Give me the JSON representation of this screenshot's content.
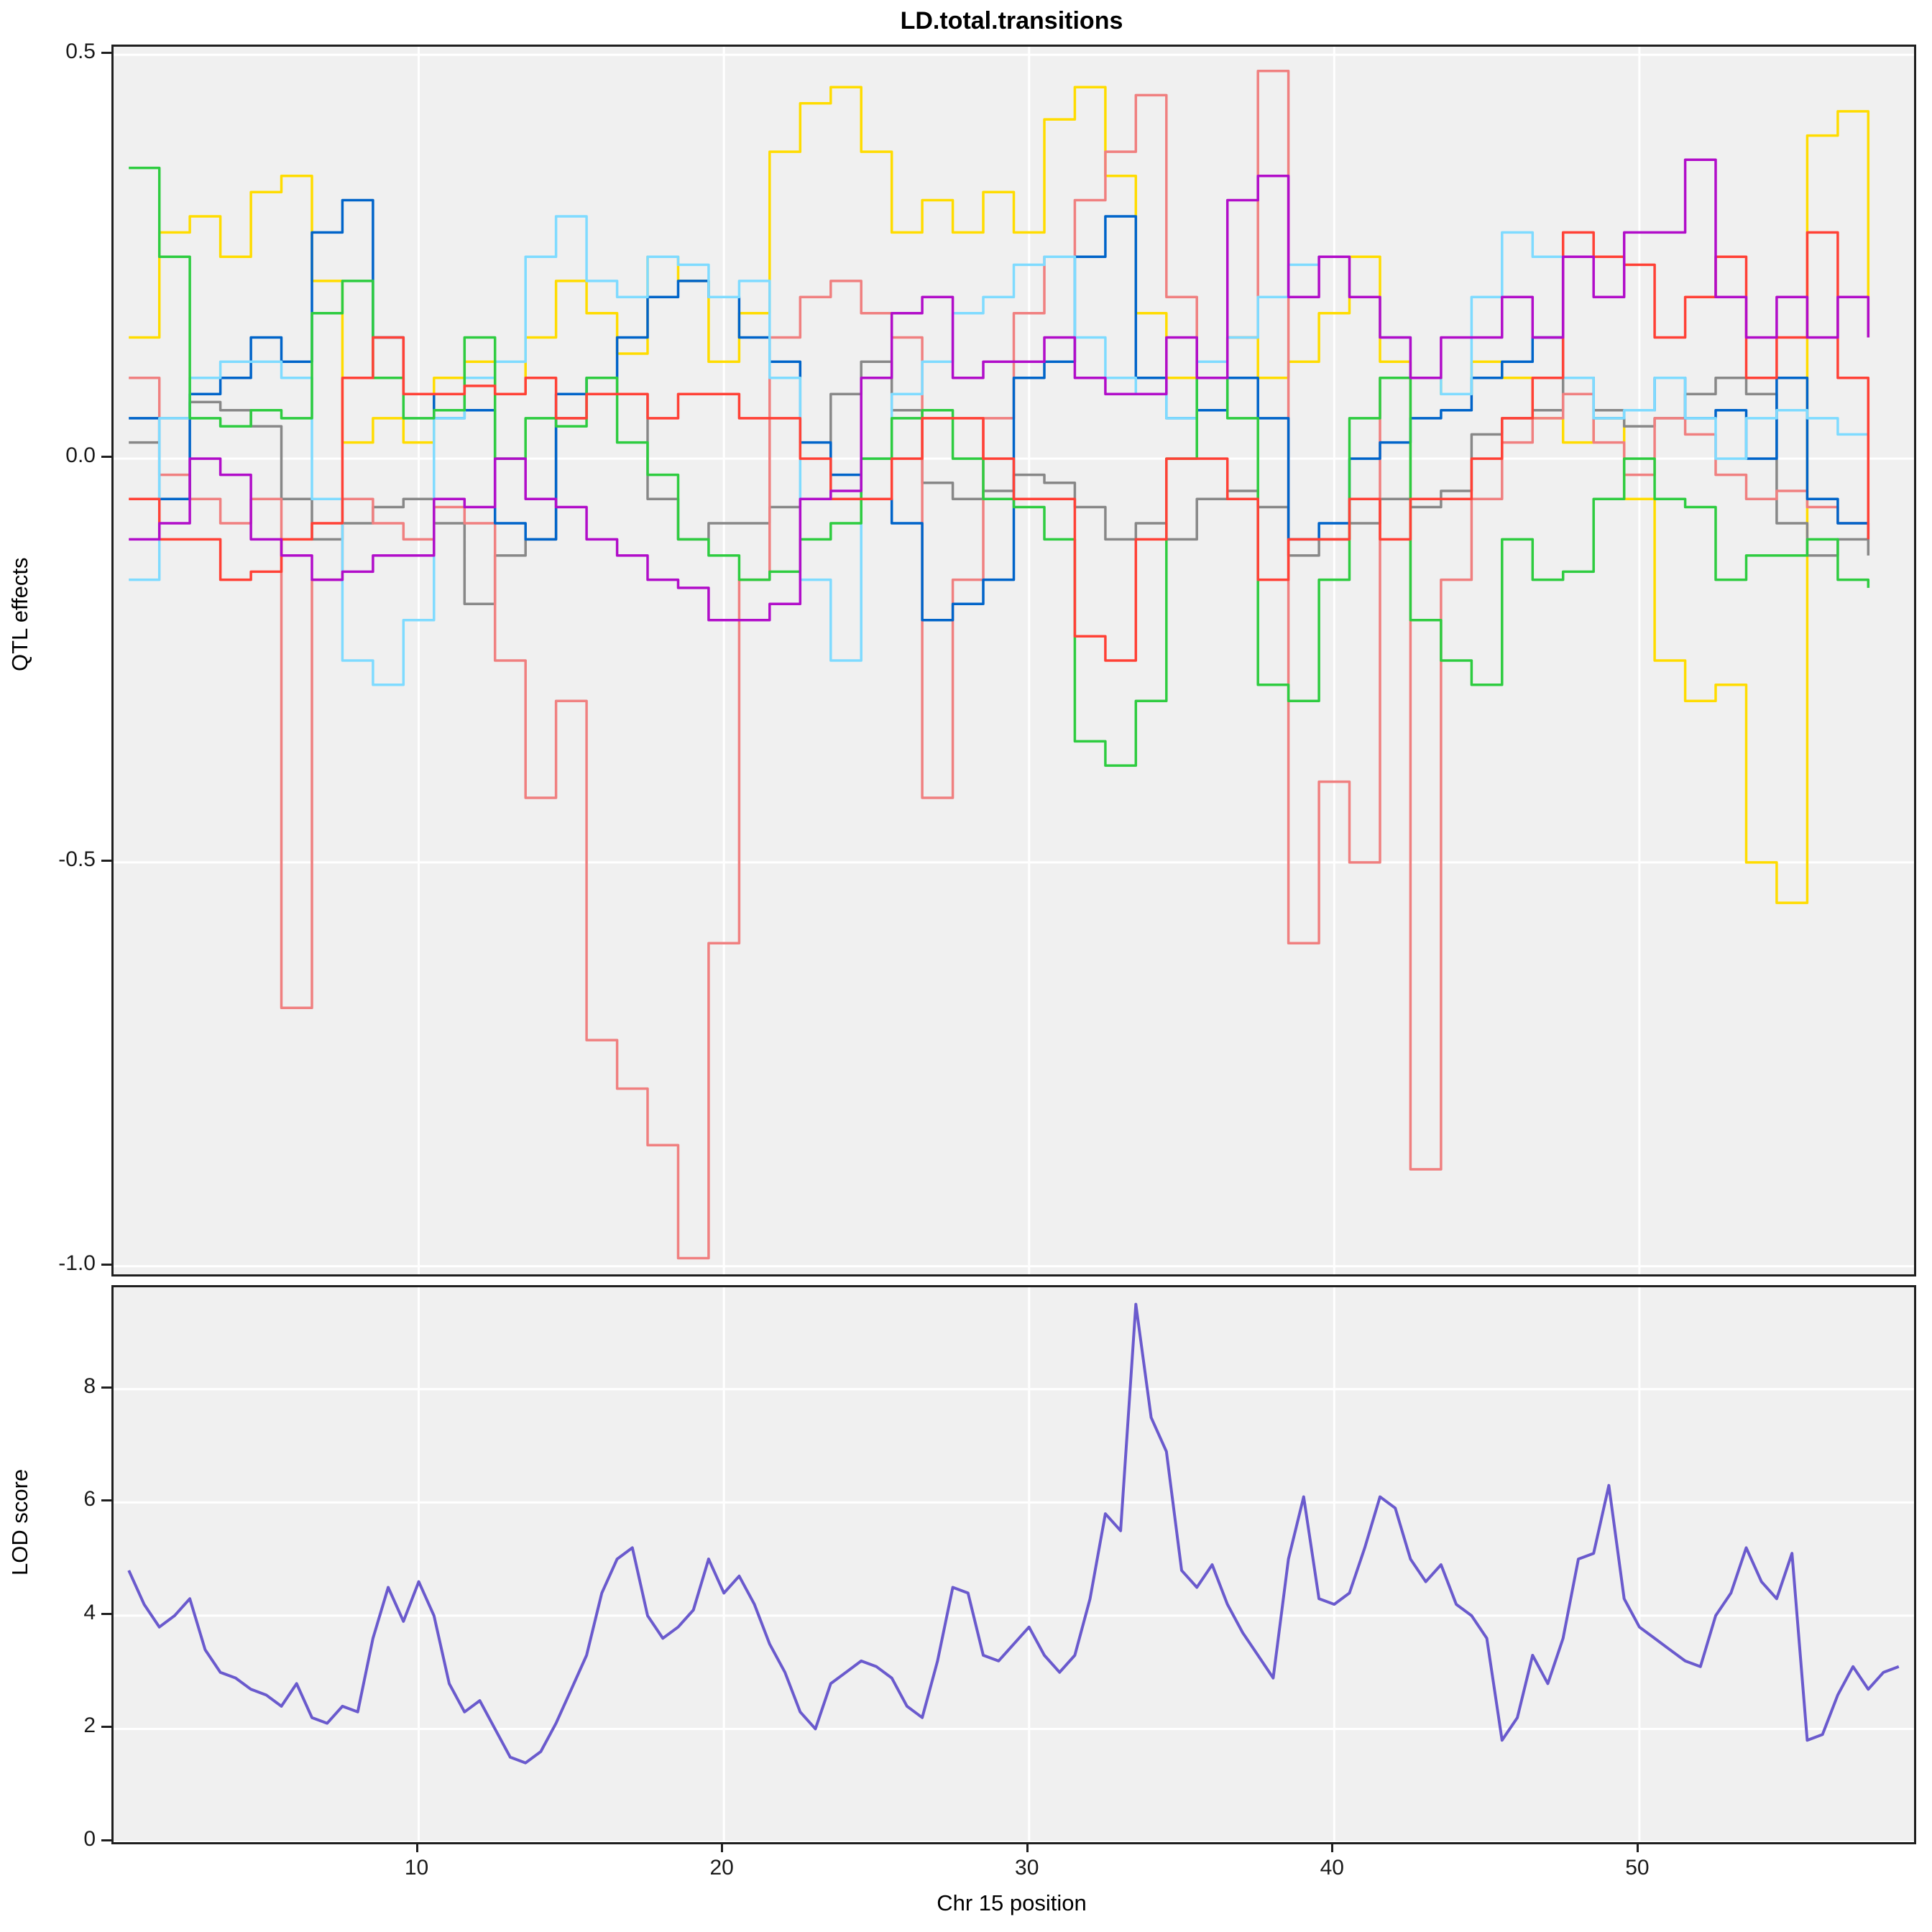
{
  "title": "LD.total.transitions",
  "xlabel": "Chr 15 position",
  "top_panel": {
    "ylabel": "QTL effects"
  },
  "bottom_panel": {
    "ylabel": "LOD score"
  },
  "chart_data": {
    "type": "line",
    "title": "LD.total.transitions",
    "xlabel": "Chr 15 position",
    "xlim": [
      0,
      59
    ],
    "xticks": [
      {
        "label": "10",
        "value": 10
      },
      {
        "label": "20",
        "value": 20
      },
      {
        "label": "30",
        "value": 30
      },
      {
        "label": "40",
        "value": 40
      },
      {
        "label": "50",
        "value": 50
      }
    ],
    "background": "#f0f0f0",
    "grid_color": "#ffffff",
    "grid": "major-only",
    "legend": "none",
    "panels": [
      {
        "name": "qtl-effects",
        "ylabel": "QTL effects",
        "ylim": [
          -1.01,
          0.51
        ],
        "yticks": [
          {
            "label": "0.5",
            "value": 0.5
          },
          {
            "label": "0.0",
            "value": 0.0
          },
          {
            "label": "-0.5",
            "value": -0.5
          },
          {
            "label": "-1.0",
            "value": -1.0
          }
        ],
        "step": true,
        "stroke_width": 3.5,
        "series": [
          {
            "name": "yellow",
            "color": "#FFDC00",
            "x_start": 0.5,
            "x_step": 1.0,
            "values": [
              0.15,
              0.28,
              0.3,
              0.25,
              0.33,
              0.35,
              0.22,
              0.02,
              0.05,
              0.02,
              0.1,
              0.12,
              0.08,
              0.15,
              0.22,
              0.18,
              0.13,
              0.25,
              0.22,
              0.12,
              0.18,
              0.38,
              0.44,
              0.46,
              0.38,
              0.28,
              0.32,
              0.28,
              0.33,
              0.28,
              0.42,
              0.46,
              0.35,
              0.18,
              0.1,
              0.12,
              0.15,
              0.1,
              0.12,
              0.18,
              0.25,
              0.12,
              0.1,
              0.08,
              0.12,
              0.1,
              0.05,
              0.02,
              0.05,
              -0.05,
              -0.25,
              -0.3,
              -0.28,
              -0.5,
              -0.55,
              0.4,
              0.43,
              0.15
            ]
          },
          {
            "name": "gray",
            "color": "#888888",
            "x_start": 0.5,
            "x_step": 1.0,
            "values": [
              0.02,
              0.05,
              0.07,
              0.06,
              0.04,
              -0.05,
              -0.1,
              -0.08,
              -0.06,
              -0.05,
              -0.08,
              -0.18,
              -0.12,
              -0.1,
              0.05,
              0.1,
              0.08,
              -0.05,
              -0.1,
              -0.08,
              -0.08,
              -0.06,
              -0.05,
              0.08,
              0.12,
              0.06,
              -0.03,
              -0.05,
              -0.04,
              -0.02,
              -0.03,
              -0.06,
              -0.1,
              -0.08,
              -0.1,
              -0.05,
              -0.04,
              -0.06,
              -0.12,
              -0.1,
              -0.08,
              -0.05,
              -0.06,
              -0.04,
              0.03,
              0.05,
              0.06,
              0.1,
              0.06,
              0.04,
              0.05,
              0.08,
              0.1,
              0.08,
              -0.08,
              -0.12,
              -0.1,
              -0.12
            ]
          },
          {
            "name": "pink",
            "color": "#F08080",
            "x_start": 0.5,
            "x_step": 1.0,
            "values": [
              0.1,
              -0.02,
              -0.05,
              -0.08,
              -0.05,
              -0.68,
              -0.15,
              -0.05,
              -0.08,
              -0.1,
              -0.06,
              -0.08,
              -0.25,
              -0.42,
              -0.3,
              -0.72,
              -0.78,
              -0.85,
              -0.99,
              -0.6,
              -0.15,
              0.15,
              0.2,
              0.22,
              0.18,
              0.15,
              -0.42,
              -0.15,
              0.05,
              0.18,
              0.25,
              0.32,
              0.38,
              0.45,
              0.2,
              0.12,
              0.15,
              0.48,
              -0.6,
              -0.4,
              -0.5,
              0.1,
              -0.88,
              -0.15,
              -0.05,
              0.02,
              0.05,
              0.08,
              0.02,
              -0.02,
              0.05,
              0.03,
              -0.02,
              -0.05,
              -0.04,
              -0.06,
              -0.08,
              -0.1
            ]
          },
          {
            "name": "blue",
            "color": "#0064C9",
            "x_start": 0.5,
            "x_step": 1.0,
            "values": [
              0.05,
              -0.05,
              0.08,
              0.1,
              0.15,
              0.12,
              0.28,
              0.32,
              0.15,
              0.08,
              0.05,
              0.06,
              -0.08,
              -0.1,
              0.08,
              0.1,
              0.15,
              0.2,
              0.22,
              0.2,
              0.15,
              0.12,
              0.02,
              -0.02,
              -0.05,
              -0.08,
              -0.2,
              -0.18,
              -0.15,
              0.1,
              0.12,
              0.25,
              0.3,
              0.1,
              0.05,
              0.06,
              0.1,
              0.05,
              -0.1,
              -0.08,
              0.0,
              0.02,
              0.05,
              0.06,
              0.1,
              0.12,
              0.15,
              0.1,
              0.05,
              0.06,
              0.1,
              0.05,
              0.06,
              0.0,
              0.1,
              -0.05,
              -0.08,
              -0.1
            ]
          },
          {
            "name": "lightblue",
            "color": "#7FDBFF",
            "x_start": 0.5,
            "x_step": 1.0,
            "values": [
              -0.15,
              0.05,
              0.1,
              0.12,
              0.12,
              0.1,
              -0.05,
              -0.25,
              -0.28,
              -0.2,
              0.05,
              0.1,
              0.12,
              0.25,
              0.3,
              0.22,
              0.2,
              0.25,
              0.24,
              0.2,
              0.22,
              0.1,
              -0.15,
              -0.25,
              0.0,
              0.08,
              0.12,
              0.18,
              0.2,
              0.24,
              0.25,
              0.15,
              0.1,
              0.08,
              0.05,
              0.12,
              0.15,
              0.2,
              0.24,
              0.25,
              0.2,
              0.15,
              0.1,
              0.08,
              0.2,
              0.28,
              0.25,
              0.1,
              0.05,
              0.06,
              0.1,
              0.05,
              0.0,
              0.05,
              0.06,
              0.05,
              0.03,
              0.02
            ]
          },
          {
            "name": "green",
            "color": "#2ECC40",
            "x_start": 0.5,
            "x_step": 1.0,
            "values": [
              0.36,
              0.25,
              0.05,
              0.04,
              0.06,
              0.05,
              0.18,
              0.22,
              0.1,
              0.05,
              0.06,
              0.15,
              0.0,
              0.05,
              0.04,
              0.1,
              0.02,
              -0.02,
              -0.1,
              -0.12,
              -0.15,
              -0.14,
              -0.1,
              -0.08,
              0.0,
              0.05,
              0.06,
              0.0,
              -0.05,
              -0.06,
              -0.1,
              -0.35,
              -0.38,
              -0.3,
              0.0,
              0.1,
              0.05,
              -0.28,
              -0.3,
              -0.15,
              0.05,
              0.1,
              -0.2,
              -0.25,
              -0.28,
              -0.1,
              -0.15,
              -0.14,
              -0.05,
              0.0,
              -0.05,
              -0.06,
              -0.15,
              -0.12,
              -0.12,
              -0.1,
              -0.15,
              -0.16
            ]
          },
          {
            "name": "red",
            "color": "#FF4136",
            "x_start": 0.5,
            "x_step": 1.0,
            "values": [
              -0.05,
              -0.1,
              -0.1,
              -0.15,
              -0.14,
              -0.1,
              -0.08,
              0.1,
              0.15,
              0.08,
              0.08,
              0.09,
              0.08,
              0.1,
              0.05,
              0.08,
              0.08,
              0.05,
              0.08,
              0.08,
              0.05,
              0.05,
              0.0,
              -0.05,
              -0.05,
              0.0,
              0.05,
              0.05,
              0.0,
              -0.05,
              -0.05,
              -0.22,
              -0.25,
              -0.1,
              0.0,
              0.0,
              -0.05,
              -0.15,
              -0.1,
              -0.1,
              -0.05,
              -0.1,
              -0.05,
              -0.05,
              0.0,
              0.05,
              0.1,
              0.28,
              0.25,
              0.24,
              0.15,
              0.2,
              0.25,
              0.1,
              0.15,
              0.28,
              0.1,
              -0.1
            ]
          },
          {
            "name": "purple",
            "color": "#B10DC9",
            "x_start": 0.5,
            "x_step": 1.0,
            "values": [
              -0.1,
              -0.08,
              0.0,
              -0.02,
              -0.1,
              -0.12,
              -0.15,
              -0.14,
              -0.12,
              -0.12,
              -0.05,
              -0.06,
              0.0,
              -0.05,
              -0.06,
              -0.1,
              -0.12,
              -0.15,
              -0.16,
              -0.2,
              -0.2,
              -0.18,
              -0.05,
              -0.04,
              0.1,
              0.18,
              0.2,
              0.1,
              0.12,
              0.12,
              0.15,
              0.1,
              0.08,
              0.08,
              0.15,
              0.1,
              0.32,
              0.35,
              0.2,
              0.25,
              0.2,
              0.15,
              0.1,
              0.15,
              0.15,
              0.2,
              0.15,
              0.25,
              0.2,
              0.28,
              0.28,
              0.37,
              0.2,
              0.15,
              0.2,
              0.15,
              0.2,
              0.15
            ]
          }
        ]
      },
      {
        "name": "lod-score",
        "ylabel": "LOD score",
        "ylim": [
          0,
          9.8
        ],
        "yticks": [
          {
            "label": "0",
            "value": 0
          },
          {
            "label": "2",
            "value": 2
          },
          {
            "label": "4",
            "value": 4
          },
          {
            "label": "6",
            "value": 6
          },
          {
            "label": "8",
            "value": 8
          }
        ],
        "step": false,
        "stroke_width": 4,
        "series": [
          {
            "name": "lod",
            "color": "#6A5ACD",
            "x_start": 0.5,
            "x_step": 0.5,
            "values": [
              4.8,
              4.2,
              3.8,
              4.0,
              4.3,
              3.4,
              3.0,
              2.9,
              2.7,
              2.6,
              2.4,
              2.8,
              2.2,
              2.1,
              2.4,
              2.3,
              3.6,
              4.5,
              3.9,
              4.6,
              4.0,
              2.8,
              2.3,
              2.5,
              2.0,
              1.5,
              1.4,
              1.6,
              2.1,
              2.7,
              3.3,
              4.4,
              5.0,
              5.2,
              4.0,
              3.6,
              3.8,
              4.1,
              5.0,
              4.4,
              4.7,
              4.2,
              3.5,
              3.0,
              2.3,
              2.0,
              2.8,
              3.0,
              3.2,
              3.1,
              2.9,
              2.4,
              2.2,
              3.2,
              4.5,
              4.4,
              3.3,
              3.2,
              3.5,
              3.8,
              3.3,
              3.0,
              3.3,
              4.3,
              5.8,
              5.5,
              9.5,
              7.5,
              6.9,
              4.8,
              4.5,
              4.9,
              4.2,
              3.7,
              3.3,
              2.9,
              5.0,
              6.1,
              4.3,
              4.2,
              4.4,
              5.2,
              6.1,
              5.9,
              5.0,
              4.6,
              4.9,
              4.2,
              4.0,
              3.6,
              1.8,
              2.2,
              3.3,
              2.8,
              3.6,
              5.0,
              5.1,
              6.3,
              4.3,
              3.8,
              3.6,
              3.4,
              3.2,
              3.1,
              4.0,
              4.4,
              5.2,
              4.6,
              4.3,
              5.1,
              1.8,
              1.9,
              2.6,
              3.1,
              2.7,
              3.0,
              3.1
            ]
          }
        ]
      }
    ]
  }
}
